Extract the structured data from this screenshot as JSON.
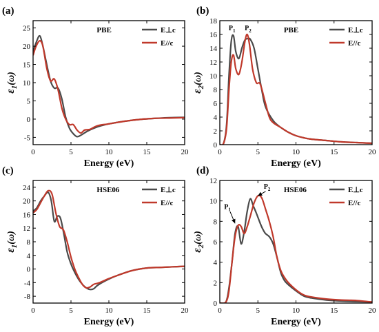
{
  "chart_data": [
    {
      "type": "line",
      "panel": "(a)",
      "method": "PBE",
      "xlabel": "Energy (eV)",
      "ylabel_main": "ε",
      "ylabel_sub": "1",
      "ylabel_tail": "(ω)",
      "xlim": [
        0,
        20
      ],
      "ylim": [
        -7,
        27
      ],
      "xticks": [
        0,
        5,
        10,
        15,
        20
      ],
      "yticks": [
        -5,
        0,
        5,
        10,
        15,
        20,
        25
      ],
      "legend_position": "top-right",
      "annotations": [],
      "series": [
        {
          "name": "E⊥c",
          "color": "#4a4a4a",
          "x": [
            0,
            0.5,
            0.9,
            1.3,
            1.8,
            2.3,
            2.8,
            3.3,
            3.8,
            4.3,
            4.8,
            5.3,
            5.8,
            6.4,
            7.0,
            8.0,
            9.0,
            10,
            12,
            14,
            16,
            18,
            20
          ],
          "y": [
            18.5,
            21.5,
            22.8,
            20,
            15,
            10.5,
            8.5,
            8.5,
            5.5,
            0.5,
            -2.5,
            -4,
            -4.8,
            -4.3,
            -3.5,
            -2.5,
            -1.8,
            -1.3,
            -0.6,
            -0.1,
            0.2,
            0.4,
            0.5
          ]
        },
        {
          "name": "E//c",
          "color": "#c0392b",
          "x": [
            0,
            0.4,
            0.9,
            1.3,
            1.8,
            2.3,
            2.8,
            3.3,
            3.8,
            4.3,
            4.8,
            5.3,
            5.8,
            6.3,
            6.8,
            7.5,
            8.5,
            10,
            12,
            14,
            16,
            18,
            20
          ],
          "y": [
            17.5,
            20,
            21.5,
            20,
            14,
            10.5,
            11,
            8,
            3,
            0,
            -1.5,
            -1.5,
            -3,
            -3.8,
            -3,
            -2.8,
            -1.8,
            -1.3,
            -0.6,
            -0.1,
            0.2,
            0.3,
            0.4
          ]
        }
      ]
    },
    {
      "type": "line",
      "panel": "(b)",
      "method": "PBE",
      "xlabel": "Energy (eV)",
      "ylabel_main": "ε",
      "ylabel_sub": "2",
      "ylabel_tail": "(ω)",
      "xlim": [
        0,
        20
      ],
      "ylim": [
        0,
        18
      ],
      "xticks": [
        0,
        5,
        10,
        15,
        20
      ],
      "yticks": [
        0,
        2,
        4,
        6,
        8,
        10,
        12,
        14,
        16,
        18
      ],
      "legend_position": "top-right",
      "annotations": [
        {
          "text": "P",
          "sub": "1",
          "x": 1.6,
          "y": 16.6
        },
        {
          "text": "P",
          "sub": "2",
          "x": 3.7,
          "y": 16.6
        }
      ],
      "series": [
        {
          "name": "E⊥c",
          "color": "#4a4a4a",
          "x": [
            0,
            0.5,
            0.9,
            1.2,
            1.5,
            1.8,
            2.1,
            2.5,
            2.9,
            3.3,
            3.7,
            4.0,
            4.5,
            5.0,
            5.5,
            6.0,
            7.0,
            8.0,
            9.0,
            10,
            11,
            12,
            14,
            16,
            18,
            20
          ],
          "y": [
            0,
            0.2,
            3,
            10,
            15,
            15.8,
            13.5,
            12.5,
            14,
            15.2,
            15.4,
            15.3,
            14,
            11,
            8,
            5.5,
            3.5,
            2.5,
            1.8,
            1.3,
            1.0,
            0.8,
            0.6,
            0.4,
            0.3,
            0.2
          ]
        },
        {
          "name": "E//c",
          "color": "#c0392b",
          "x": [
            0,
            0.5,
            0.9,
            1.2,
            1.5,
            1.8,
            2.1,
            2.5,
            2.9,
            3.3,
            3.6,
            3.9,
            4.3,
            4.8,
            5.3,
            6.0,
            6.5,
            7.0,
            8.0,
            9.0,
            10,
            11,
            12,
            14,
            16,
            18,
            20
          ],
          "y": [
            0,
            0.2,
            2.5,
            8,
            12,
            13,
            11,
            10.2,
            12,
            15,
            16,
            14.5,
            11,
            9,
            8.8,
            6,
            4,
            3.2,
            2.5,
            1.8,
            1.3,
            1.0,
            0.8,
            0.6,
            0.4,
            0.3,
            0.2
          ]
        }
      ]
    },
    {
      "type": "line",
      "panel": "(c)",
      "method": "HSE06",
      "xlabel": "Energy (eV)",
      "ylabel_main": "ε",
      "ylabel_sub": "1",
      "ylabel_tail": "(ω)",
      "xlim": [
        0,
        20
      ],
      "ylim": [
        -10,
        26
      ],
      "xticks": [
        0,
        5,
        10,
        15,
        20
      ],
      "yticks": [
        -8,
        -4,
        0,
        4,
        8,
        12,
        16,
        20,
        24
      ],
      "legend_position": "top-right",
      "annotations": [],
      "series": [
        {
          "name": "E⊥c",
          "color": "#4a4a4a",
          "x": [
            0,
            0.5,
            1.0,
            1.5,
            2.0,
            2.4,
            2.8,
            3.2,
            3.6,
            4.0,
            4.5,
            5.0,
            5.5,
            6.0,
            6.5,
            7.0,
            7.5,
            8.0,
            8.5,
            9.5,
            11,
            13,
            15,
            17,
            20
          ],
          "y": [
            17,
            18,
            20,
            21.5,
            22.5,
            20,
            14,
            15.5,
            15,
            11,
            5,
            1.5,
            -1,
            -3,
            -4.5,
            -5.5,
            -6,
            -5.8,
            -4.8,
            -3.5,
            -2,
            -0.5,
            0.3,
            0.5,
            0.8
          ]
        },
        {
          "name": "E//c",
          "color": "#c0392b",
          "x": [
            0,
            0.5,
            1.0,
            1.5,
            2.0,
            2.5,
            3.0,
            3.5,
            4.0,
            4.5,
            5.0,
            5.5,
            6.0,
            6.5,
            7.0,
            7.5,
            8.0,
            8.5,
            9.0,
            10,
            11,
            13,
            15,
            17,
            20
          ],
          "y": [
            16.5,
            17.5,
            19.5,
            21.5,
            23,
            22,
            16.5,
            12.5,
            11.5,
            8,
            3.5,
            0,
            -2.5,
            -4.5,
            -5.5,
            -5.3,
            -4.5,
            -4.2,
            -3.8,
            -2.8,
            -2,
            -0.5,
            0.3,
            0.5,
            0.8
          ]
        }
      ]
    },
    {
      "type": "line",
      "panel": "(d)",
      "method": "HSE06",
      "xlabel": "Energy (eV)",
      "ylabel_main": "ε",
      "ylabel_sub": "2",
      "ylabel_tail": "(ω)",
      "xlim": [
        0,
        20
      ],
      "ylim": [
        0,
        12
      ],
      "xticks": [
        0,
        5,
        10,
        15,
        20
      ],
      "yticks": [
        0,
        2,
        4,
        6,
        8,
        10,
        12
      ],
      "legend_position": "top-right",
      "annotations": [
        {
          "text": "P",
          "sub": "1",
          "x": 1.0,
          "y": 9.2,
          "arrow_to": [
            2.0,
            7.8
          ]
        },
        {
          "text": "P",
          "sub": "2",
          "x": 6.2,
          "y": 11.2,
          "arrow_to": [
            5.0,
            10.5
          ]
        }
      ],
      "series": [
        {
          "name": "E⊥c",
          "color": "#4a4a4a",
          "x": [
            0,
            0.8,
            1.2,
            1.6,
            2.0,
            2.4,
            2.8,
            3.2,
            3.6,
            4.0,
            4.4,
            4.8,
            5.2,
            5.6,
            6.0,
            6.5,
            7.0,
            7.5,
            8.0,
            8.5,
            9.0,
            10,
            11,
            12,
            14,
            16,
            18,
            20
          ],
          "y": [
            0,
            0.1,
            1.5,
            4,
            6.8,
            7.5,
            5.8,
            7,
            9,
            10.2,
            9.5,
            8.8,
            8,
            7.3,
            6.8,
            6.5,
            5.8,
            4.5,
            3.0,
            2.2,
            1.8,
            1.2,
            0.7,
            0.5,
            0.3,
            0.2,
            0.15,
            0.1
          ]
        },
        {
          "name": "E//c",
          "color": "#c0392b",
          "x": [
            0,
            0.8,
            1.2,
            1.6,
            2.0,
            2.4,
            2.8,
            3.2,
            3.6,
            4.0,
            4.5,
            5.0,
            5.5,
            6.0,
            6.5,
            7.0,
            7.5,
            8.0,
            8.5,
            9.0,
            10,
            11,
            12,
            14,
            16,
            18,
            20
          ],
          "y": [
            0,
            0.1,
            1.2,
            4,
            6.5,
            7.6,
            7.5,
            6.8,
            7.5,
            8.5,
            9.8,
            10.5,
            10.3,
            9.2,
            8,
            6.5,
            4.5,
            3.2,
            2.5,
            2.0,
            1.3,
            0.8,
            0.6,
            0.4,
            0.3,
            0.25,
            0.1
          ]
        }
      ]
    }
  ]
}
